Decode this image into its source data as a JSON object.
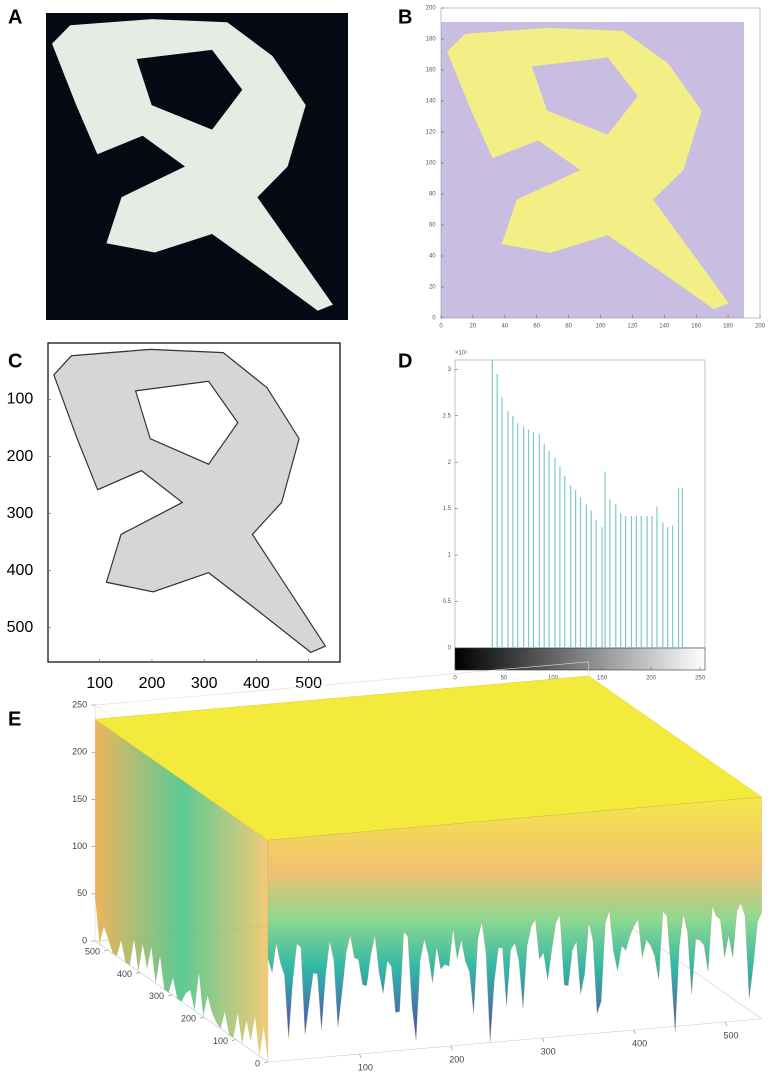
{
  "chart_data": [
    {
      "label": "A",
      "type": "image"
    },
    {
      "label": "B",
      "type": "heatmap",
      "xlim": [
        0,
        200
      ],
      "ylim": [
        0,
        200
      ],
      "xticks": [
        0,
        20,
        40,
        60,
        80,
        100,
        120,
        140,
        160,
        180,
        200
      ],
      "yticks": [
        0,
        20,
        40,
        60,
        80,
        100,
        120,
        140,
        160,
        180,
        200
      ]
    },
    {
      "label": "C",
      "type": "image",
      "xlim": [
        1,
        560
      ],
      "ylim": [
        1,
        560
      ],
      "xticks": [
        100,
        200,
        300,
        400,
        500
      ],
      "yticks": [
        100,
        200,
        300,
        400,
        500
      ]
    },
    {
      "label": "D",
      "type": "bar",
      "color": "#7fc9c9",
      "y_multiplier": "×10⁴",
      "x": [
        38,
        43,
        48,
        54,
        59,
        64,
        70,
        75,
        80,
        86,
        91,
        96,
        102,
        107,
        112,
        118,
        123,
        128,
        134,
        139,
        144,
        150,
        153,
        158,
        164,
        169,
        174,
        180,
        185,
        190,
        196,
        201,
        206,
        212,
        217,
        222,
        228,
        232
      ],
      "values": [
        3.1,
        2.95,
        2.7,
        2.55,
        2.5,
        2.42,
        2.38,
        2.35,
        2.32,
        2.3,
        2.2,
        2.12,
        2.05,
        1.95,
        1.85,
        1.75,
        1.7,
        1.62,
        1.55,
        1.48,
        1.38,
        1.3,
        1.9,
        1.6,
        1.55,
        1.45,
        1.42,
        1.42,
        1.42,
        1.42,
        1.42,
        1.42,
        1.52,
        1.35,
        1.3,
        1.32,
        1.72,
        1.72
      ],
      "xlim": [
        0,
        255
      ],
      "ylim": [
        0,
        3.1
      ],
      "xticks": [
        0,
        50,
        100,
        150,
        200,
        250
      ],
      "yticks": [
        0,
        0.5,
        1,
        1.5,
        2,
        2.5,
        3
      ]
    },
    {
      "label": "E",
      "type": "surface",
      "xlim": [
        0,
        540
      ],
      "ylim": [
        0,
        540
      ],
      "zlim": [
        0,
        250
      ],
      "xticks": [
        100,
        200,
        300,
        400,
        500
      ],
      "yticks": [
        0,
        100,
        200,
        300,
        400,
        500
      ],
      "zticks": [
        0,
        50,
        100,
        150,
        200,
        250
      ]
    }
  ]
}
